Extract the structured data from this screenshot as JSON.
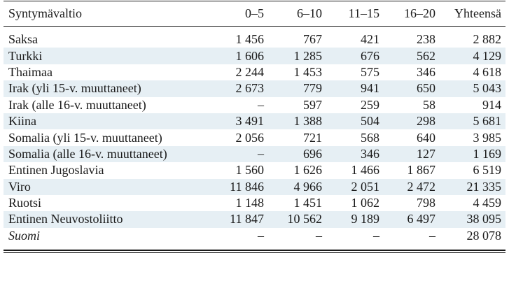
{
  "columns": [
    "Syntymävaltio",
    "0–5",
    "6–10",
    "11–15",
    "16–20",
    "Yhteensä"
  ],
  "rows": [
    {
      "name": "Saksa",
      "values": [
        "1 456",
        "767",
        "421",
        "238",
        "2 882"
      ],
      "shaded": false,
      "italic": false
    },
    {
      "name": "Turkki",
      "values": [
        "1 606",
        "1 285",
        "676",
        "562",
        "4 129"
      ],
      "shaded": true,
      "italic": false
    },
    {
      "name": "Thaimaa",
      "values": [
        "2 244",
        "1 453",
        "575",
        "346",
        "4 618"
      ],
      "shaded": false,
      "italic": false
    },
    {
      "name": "Irak (yli 15-v. muuttaneet)",
      "values": [
        "2 673",
        "779",
        "941",
        "650",
        "5 043"
      ],
      "shaded": true,
      "italic": false
    },
    {
      "name": "Irak (alle 16-v. muuttaneet)",
      "values": [
        "–",
        "597",
        "259",
        "58",
        "914"
      ],
      "shaded": false,
      "italic": false
    },
    {
      "name": "Kiina",
      "values": [
        "3 491",
        "1 388",
        "504",
        "298",
        "5 681"
      ],
      "shaded": true,
      "italic": false
    },
    {
      "name": "Somalia (yli 15-v. muuttaneet)",
      "values": [
        "2 056",
        "721",
        "568",
        "640",
        "3 985"
      ],
      "shaded": false,
      "italic": false
    },
    {
      "name": "Somalia (alle 16-v. muuttaneet)",
      "values": [
        "–",
        "696",
        "346",
        "127",
        "1 169"
      ],
      "shaded": true,
      "italic": false
    },
    {
      "name": "Entinen Jugoslavia",
      "values": [
        "1 560",
        "1 626",
        "1 466",
        "1 867",
        "6 519"
      ],
      "shaded": false,
      "italic": false
    },
    {
      "name": "Viro",
      "values": [
        "11 846",
        "4 966",
        "2 051",
        "2 472",
        "21 335"
      ],
      "shaded": true,
      "italic": false
    },
    {
      "name": "Ruotsi",
      "values": [
        "1 148",
        "1 451",
        "1 062",
        "798",
        "4 459"
      ],
      "shaded": false,
      "italic": false
    },
    {
      "name": "Entinen Neuvostoliitto",
      "values": [
        "11 847",
        "10 562",
        "9 189",
        "6 497",
        "38 095"
      ],
      "shaded": true,
      "italic": false
    },
    {
      "name": "Suomi",
      "values": [
        "–",
        "–",
        "–",
        "–",
        "28 078"
      ],
      "shaded": false,
      "italic": true
    }
  ]
}
